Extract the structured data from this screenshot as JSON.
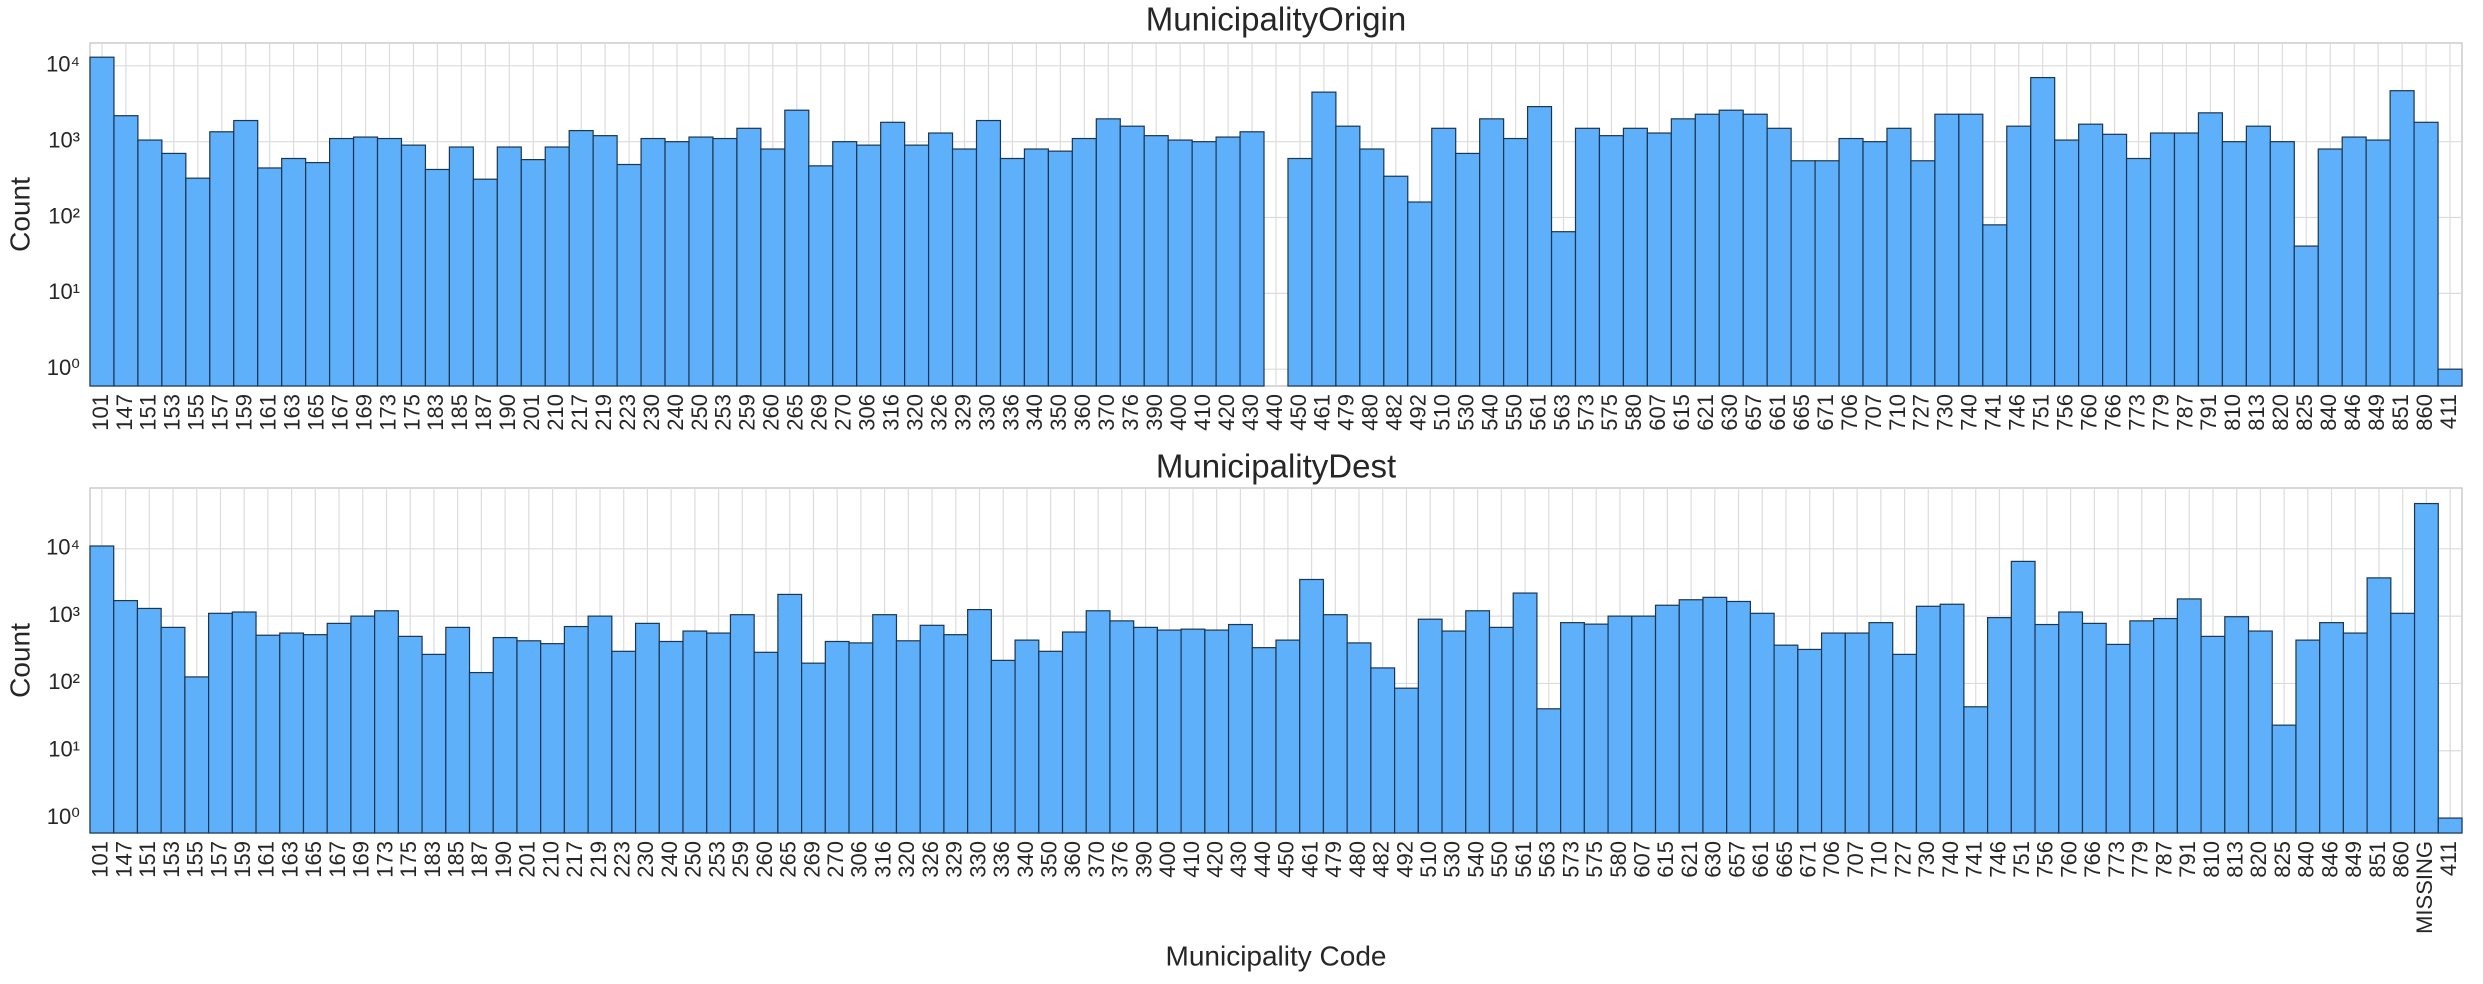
{
  "chart_data": [
    {
      "type": "bar",
      "title": "MunicipalityOrigin",
      "ylabel": "Count",
      "log_scale": true,
      "grid": true,
      "color": "#5eb0fa",
      "edgecolor": "#1c3550",
      "categories": [
        "101",
        "147",
        "151",
        "153",
        "155",
        "157",
        "159",
        "161",
        "163",
        "165",
        "167",
        "169",
        "173",
        "175",
        "183",
        "185",
        "187",
        "190",
        "201",
        "210",
        "217",
        "219",
        "223",
        "230",
        "240",
        "250",
        "253",
        "259",
        "260",
        "265",
        "269",
        "270",
        "306",
        "316",
        "320",
        "326",
        "329",
        "330",
        "336",
        "340",
        "350",
        "360",
        "370",
        "376",
        "390",
        "400",
        "410",
        "420",
        "430",
        "440",
        "450",
        "461",
        "479",
        "480",
        "482",
        "492",
        "510",
        "530",
        "540",
        "550",
        "561",
        "563",
        "573",
        "575",
        "580",
        "607",
        "615",
        "621",
        "630",
        "657",
        "661",
        "665",
        "671",
        "706",
        "707",
        "710",
        "727",
        "730",
        "740",
        "741",
        "746",
        "751",
        "756",
        "760",
        "766",
        "773",
        "779",
        "787",
        "791",
        "810",
        "813",
        "820",
        "825",
        "840",
        "846",
        "849",
        "851",
        "860",
        "411"
      ],
      "values": [
        13000,
        2200,
        1050,
        700,
        330,
        1350,
        1900,
        450,
        600,
        530,
        1100,
        1150,
        1100,
        900,
        430,
        850,
        320,
        850,
        580,
        850,
        1400,
        1200,
        500,
        1100,
        1000,
        1150,
        1100,
        1500,
        800,
        2600,
        480,
        1000,
        900,
        1800,
        900,
        1300,
        800,
        1900,
        600,
        800,
        750,
        1100,
        2000,
        1600,
        1200,
        1050,
        1000,
        1150,
        1350,
        0,
        600,
        4500,
        1600,
        800,
        350,
        160,
        1500,
        700,
        2000,
        1100,
        2900,
        65,
        1500,
        1200,
        1500,
        1300,
        2000,
        2300,
        2600,
        2300,
        1500,
        560,
        560,
        1100,
        1000,
        1500,
        560,
        2300,
        2300,
        80,
        1600,
        7000,
        1050,
        1700,
        1250,
        600,
        1300,
        1300,
        2400,
        1000,
        1600,
        1000,
        42,
        800,
        1150,
        1050,
        4700,
        1800,
        1
      ],
      "ylim": [
        0.6,
        20000
      ],
      "yticks": [
        {
          "value": 1,
          "label": "10⁰"
        },
        {
          "value": 10,
          "label": "10¹"
        },
        {
          "value": 100,
          "label": "10²"
        },
        {
          "value": 1000,
          "label": "10³"
        },
        {
          "value": 10000,
          "label": "10⁴"
        }
      ]
    },
    {
      "type": "bar",
      "title": "MunicipalityDest",
      "ylabel": "Count",
      "xlabel": "Municipality Code",
      "log_scale": true,
      "grid": true,
      "color": "#5eb0fa",
      "edgecolor": "#1c3550",
      "categories": [
        "101",
        "147",
        "151",
        "153",
        "155",
        "157",
        "159",
        "161",
        "163",
        "165",
        "167",
        "169",
        "173",
        "175",
        "183",
        "185",
        "187",
        "190",
        "201",
        "210",
        "217",
        "219",
        "223",
        "230",
        "240",
        "250",
        "253",
        "259",
        "260",
        "265",
        "269",
        "270",
        "306",
        "316",
        "320",
        "326",
        "329",
        "330",
        "336",
        "340",
        "350",
        "360",
        "370",
        "376",
        "390",
        "400",
        "410",
        "420",
        "430",
        "440",
        "450",
        "461",
        "479",
        "480",
        "482",
        "492",
        "510",
        "530",
        "540",
        "550",
        "561",
        "563",
        "573",
        "575",
        "580",
        "607",
        "615",
        "621",
        "630",
        "657",
        "661",
        "665",
        "671",
        "706",
        "707",
        "710",
        "727",
        "730",
        "740",
        "741",
        "746",
        "751",
        "756",
        "760",
        "766",
        "773",
        "779",
        "787",
        "791",
        "810",
        "813",
        "820",
        "825",
        "840",
        "846",
        "849",
        "851",
        "860",
        "MISSING",
        "411"
      ],
      "values": [
        11000,
        1700,
        1300,
        680,
        125,
        1100,
        1150,
        520,
        560,
        530,
        780,
        1000,
        1200,
        500,
        270,
        680,
        145,
        480,
        430,
        390,
        700,
        1000,
        300,
        780,
        420,
        600,
        560,
        1050,
        290,
        2100,
        200,
        420,
        400,
        1050,
        430,
        730,
        530,
        1250,
        220,
        440,
        300,
        580,
        1200,
        850,
        680,
        620,
        640,
        620,
        750,
        340,
        440,
        3500,
        1050,
        400,
        170,
        85,
        900,
        600,
        1200,
        680,
        2200,
        42,
        800,
        760,
        1000,
        1000,
        1450,
        1750,
        1900,
        1650,
        1100,
        370,
        320,
        560,
        560,
        800,
        270,
        1400,
        1500,
        45,
        950,
        6500,
        750,
        1150,
        780,
        380,
        850,
        920,
        1800,
        500,
        980,
        600,
        24,
        440,
        800,
        560,
        3700,
        1100,
        47000,
        1
      ],
      "ylim": [
        0.6,
        80000
      ],
      "yticks": [
        {
          "value": 1,
          "label": "10⁰"
        },
        {
          "value": 10,
          "label": "10¹"
        },
        {
          "value": 100,
          "label": "10²"
        },
        {
          "value": 1000,
          "label": "10³"
        },
        {
          "value": 10000,
          "label": "10⁴"
        }
      ]
    }
  ]
}
